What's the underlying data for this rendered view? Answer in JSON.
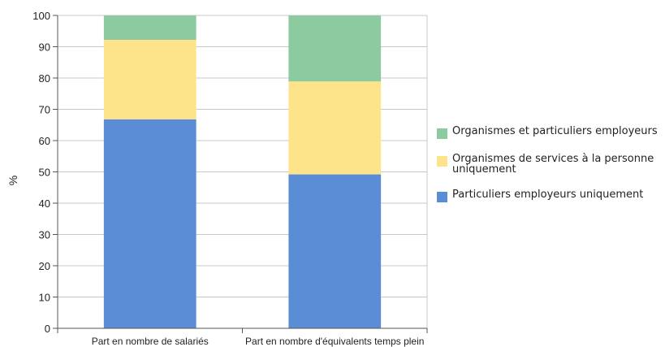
{
  "chart_data": {
    "type": "bar",
    "stacked": true,
    "categories": [
      "Part en nombre de salariés",
      "Part en nombre d'équivalents temps plein"
    ],
    "series": [
      {
        "name": "Particuliers employeurs uniquement",
        "values": [
          66.8,
          49.2
        ],
        "color": "#5b8dd6"
      },
      {
        "name": "Organismes de services à la personne uniquement",
        "values": [
          25.4,
          29.7
        ],
        "color": "#fde48b"
      },
      {
        "name": "Organismes et particuliers employeurs",
        "values": [
          7.8,
          21.1
        ],
        "color": "#8ccaa0"
      }
    ],
    "ylabel": "%",
    "ylim": [
      0,
      100
    ],
    "yticks": [
      "0",
      "10",
      "20",
      "30",
      "40",
      "50",
      "60",
      "70",
      "80",
      "90",
      "100"
    ],
    "grid": true,
    "legend_position": "right",
    "legend_order": [
      2,
      1,
      0
    ]
  }
}
